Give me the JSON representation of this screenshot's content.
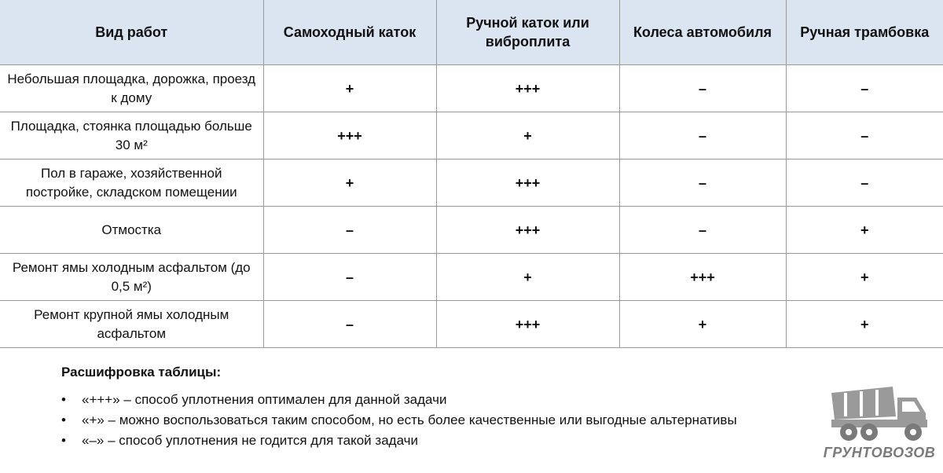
{
  "table": {
    "headers": [
      "Вид работ",
      "Самоходный каток",
      "Ручной каток или виброплита",
      "Колеса автомобиля",
      "Ручная трамбовка"
    ],
    "rows": [
      [
        "Небольшая площадка, дорожка, проезд к дому",
        "+",
        "+++",
        "–",
        "–"
      ],
      [
        "Площадка, стоянка площадью больше 30 м²",
        "+++",
        "+",
        "–",
        "–"
      ],
      [
        "Пол в гараже, хозяйственной постройке, складском помещении",
        "+",
        "+++",
        "–",
        "–"
      ],
      [
        "Отмостка",
        "–",
        "+++",
        "–",
        "+"
      ],
      [
        "Ремонт ямы холодным асфальтом (до 0,5 м²)",
        "–",
        "+",
        "+++",
        "+"
      ],
      [
        "Ремонт крупной ямы холодным асфальтом",
        "–",
        "+++",
        "+",
        "+"
      ]
    ]
  },
  "legend": {
    "title": "Расшифровка таблицы:",
    "items": [
      "«+++» – способ уплотнения оптимален для данной задачи",
      "«+» – можно воспользоваться таким способом, но есть более качественные или выгодные альтернативы",
      "«–» – способ уплотнения не годится для такой задачи"
    ]
  },
  "logo": {
    "text": "ГРУНТОВОЗОВ",
    "icon": "dump-truck-icon"
  },
  "colors": {
    "header_bg": "#dbe4f1",
    "border": "#9a9a9a",
    "logo": "#8a8a8a"
  }
}
